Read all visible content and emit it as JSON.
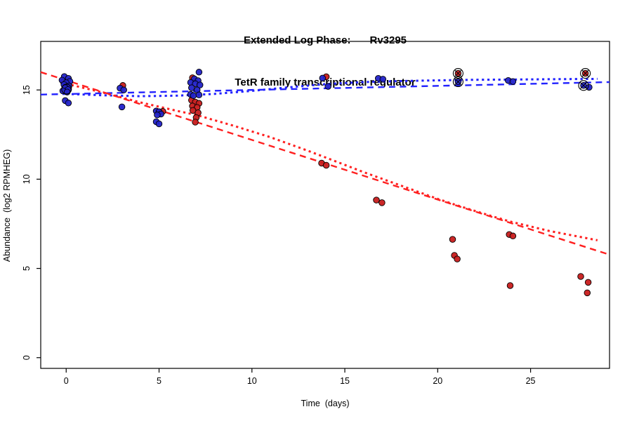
{
  "title": {
    "main_left": "Extended Log Phase:",
    "main_right": "Rv3295",
    "subtitle": "TetR family transcriptional regulator"
  },
  "axes": {
    "x_label": "Time  (days)",
    "y_label": "Abundance  (log2 RPMHEG)",
    "x_tick_values": [
      0,
      5,
      10,
      15,
      20,
      25
    ],
    "x_tick_labels": [
      "0",
      "5",
      "10",
      "15",
      "20",
      "25"
    ],
    "y_tick_values": [
      0,
      5,
      10,
      15
    ],
    "y_tick_labels": [
      "0",
      "5",
      "10",
      "15"
    ],
    "xlim": [
      -1.37,
      29.25
    ],
    "ylim": [
      -0.6,
      17.72
    ],
    "grid": false,
    "legend": "none"
  },
  "colors": {
    "blue_point": "#2222c8",
    "red_point": "#c81c1c",
    "blue_line": "#2222ff",
    "red_line": "#ff2020",
    "marker_ring": "#000000",
    "axis": "#000000"
  },
  "chart_data": {
    "type": "scatter",
    "xlabel": "Time  (days)",
    "ylabel": "Abundance  (log2 RPMHEG)",
    "series": [
      {
        "name": "blue-series",
        "color_key": "blue_point",
        "points": [
          [
            -0.1,
            15.75
          ],
          [
            0.12,
            15.65
          ],
          [
            -0.22,
            15.55
          ],
          [
            0.2,
            15.48
          ],
          [
            0.0,
            15.4
          ],
          [
            -0.12,
            15.3
          ],
          [
            0.15,
            15.22
          ],
          [
            -0.05,
            15.12
          ],
          [
            0.1,
            15.02
          ],
          [
            -0.18,
            14.95
          ],
          [
            0.05,
            14.88
          ],
          [
            -0.05,
            14.4
          ],
          [
            0.12,
            14.27
          ],
          [
            2.9,
            15.1
          ],
          [
            3.1,
            15.0
          ],
          [
            3.0,
            14.05
          ],
          [
            4.85,
            13.82
          ],
          [
            5.0,
            13.78
          ],
          [
            5.1,
            13.65
          ],
          [
            4.9,
            13.6
          ],
          [
            4.85,
            13.22
          ],
          [
            5.0,
            13.1
          ],
          [
            7.15,
            16.0
          ],
          [
            6.9,
            15.62
          ],
          [
            7.1,
            15.52
          ],
          [
            6.7,
            15.42
          ],
          [
            6.95,
            15.35
          ],
          [
            7.2,
            15.28
          ],
          [
            6.75,
            15.12
          ],
          [
            7.05,
            15.0
          ],
          [
            6.7,
            14.75
          ],
          [
            6.85,
            14.68
          ],
          [
            7.15,
            14.72
          ],
          [
            13.8,
            15.66
          ],
          [
            14.1,
            15.2
          ],
          [
            16.8,
            15.65
          ],
          [
            17.05,
            15.6
          ],
          [
            21.1,
            15.46
          ],
          [
            23.8,
            15.53
          ],
          [
            24.05,
            15.47
          ],
          [
            27.85,
            15.25
          ],
          [
            28.15,
            15.15
          ]
        ]
      },
      {
        "name": "red-series",
        "color_key": "red_point",
        "points": [
          [
            -0.15,
            15.45
          ],
          [
            0.08,
            15.3
          ],
          [
            -0.02,
            15.1
          ],
          [
            3.05,
            15.25
          ],
          [
            5.2,
            13.8
          ],
          [
            6.8,
            15.68
          ],
          [
            6.75,
            14.42
          ],
          [
            6.95,
            14.32
          ],
          [
            7.15,
            14.25
          ],
          [
            6.8,
            14.1
          ],
          [
            7.05,
            14.02
          ],
          [
            6.82,
            13.85
          ],
          [
            7.1,
            13.72
          ],
          [
            7.0,
            13.45
          ],
          [
            6.95,
            13.2
          ],
          [
            14.0,
            15.74
          ],
          [
            13.75,
            10.9
          ],
          [
            14.0,
            10.78
          ],
          [
            16.7,
            8.83
          ],
          [
            17.0,
            8.68
          ],
          [
            21.1,
            15.93
          ],
          [
            20.8,
            6.63
          ],
          [
            20.9,
            5.73
          ],
          [
            21.05,
            5.53
          ],
          [
            23.85,
            6.9
          ],
          [
            24.05,
            6.82
          ],
          [
            23.9,
            4.04
          ],
          [
            27.95,
            15.93
          ],
          [
            27.7,
            4.55
          ],
          [
            28.1,
            4.22
          ],
          [
            28.05,
            3.63
          ]
        ]
      }
    ],
    "circled_points": [
      {
        "x": 0.02,
        "y": 15.05,
        "cross": false
      },
      {
        "x": 21.1,
        "y": 15.93,
        "cross": true
      },
      {
        "x": 21.1,
        "y": 15.46,
        "cross": true
      },
      {
        "x": 27.95,
        "y": 15.93,
        "cross": true
      },
      {
        "x": 27.85,
        "y": 15.25,
        "cross": true
      }
    ],
    "trend_lines": [
      {
        "name": "blue-dashed-linear-fit",
        "style": "dashed",
        "color_key": "blue_line",
        "points": [
          [
            -1.37,
            14.74
          ],
          [
            29.25,
            15.44
          ]
        ]
      },
      {
        "name": "blue-dotted-model-fit",
        "style": "dotted",
        "color_key": "blue_line",
        "points": [
          [
            0,
            14.78
          ],
          [
            2,
            14.7
          ],
          [
            4,
            14.65
          ],
          [
            6,
            14.68
          ],
          [
            8,
            14.78
          ],
          [
            10,
            14.95
          ],
          [
            12,
            15.15
          ],
          [
            14,
            15.33
          ],
          [
            16,
            15.44
          ],
          [
            18,
            15.5
          ],
          [
            20,
            15.54
          ],
          [
            22,
            15.57
          ],
          [
            24,
            15.58
          ],
          [
            26,
            15.6
          ],
          [
            28.6,
            15.62
          ]
        ]
      },
      {
        "name": "red-dashed-linear-fit",
        "style": "dashed",
        "color_key": "red_line",
        "points": [
          [
            -1.37,
            16.0
          ],
          [
            29.25,
            5.77
          ]
        ]
      },
      {
        "name": "red-dotted-model-fit",
        "style": "dotted",
        "color_key": "red_line",
        "points": [
          [
            0,
            15.35
          ],
          [
            2,
            14.85
          ],
          [
            4,
            14.3
          ],
          [
            6,
            13.82
          ],
          [
            7,
            13.6
          ],
          [
            9,
            13.0
          ],
          [
            11,
            12.35
          ],
          [
            13,
            11.6
          ],
          [
            14,
            11.2
          ],
          [
            16,
            10.4
          ],
          [
            18,
            9.65
          ],
          [
            20,
            8.9
          ],
          [
            21,
            8.55
          ],
          [
            23,
            7.9
          ],
          [
            24,
            7.6
          ],
          [
            26,
            7.1
          ],
          [
            28.6,
            6.58
          ]
        ]
      }
    ]
  }
}
